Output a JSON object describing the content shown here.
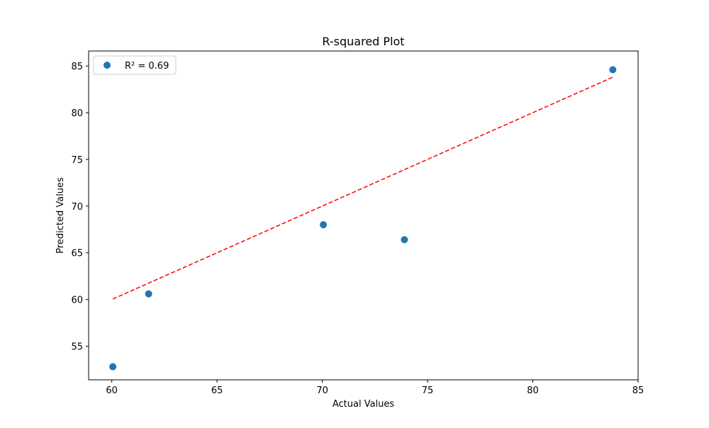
{
  "chart_data": {
    "type": "scatter",
    "title": "R-squared Plot",
    "xlabel": "Actual Values",
    "ylabel": "Predicted Values",
    "xlim": [
      58.9,
      85.0
    ],
    "ylim": [
      51.4,
      86.6
    ],
    "xticks": [
      60,
      65,
      70,
      75,
      80,
      85
    ],
    "yticks": [
      55,
      60,
      65,
      70,
      75,
      80,
      85
    ],
    "grid": false,
    "legend_position": "top-left",
    "series": [
      {
        "name": "R² = 0.69",
        "color": "#1f77b4",
        "marker": "circle",
        "points": [
          {
            "x": 60.05,
            "y": 52.8
          },
          {
            "x": 61.75,
            "y": 60.6
          },
          {
            "x": 70.05,
            "y": 68.0
          },
          {
            "x": 73.9,
            "y": 66.4
          },
          {
            "x": 83.8,
            "y": 84.6
          }
        ]
      }
    ],
    "reference_line": {
      "color": "#ff0000",
      "style": "dashed",
      "points": [
        {
          "x": 60.05,
          "y": 60.05
        },
        {
          "x": 83.8,
          "y": 83.8
        }
      ]
    }
  }
}
